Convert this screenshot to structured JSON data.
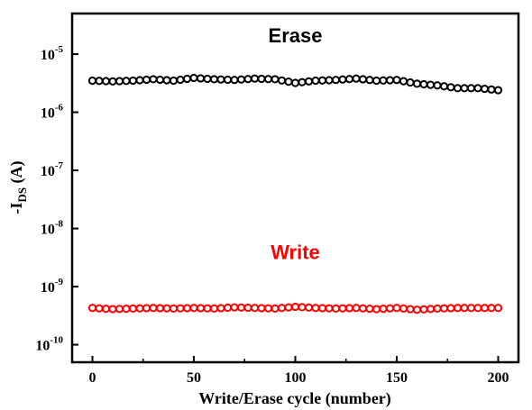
{
  "chart_data": {
    "type": "scatter",
    "xlabel": "Write/Erase cycle (number)",
    "ylabel": {
      "main": "-I",
      "sub": "DS",
      "unit": " (A)"
    },
    "xlim": [
      -10,
      210
    ],
    "ylim": [
      5e-11,
      5e-05
    ],
    "yscale": "log",
    "xticks": [
      0,
      50,
      100,
      150,
      200
    ],
    "yticks": [
      {
        "value": 1e-05,
        "base": "10",
        "exp": "-5"
      },
      {
        "value": 1e-06,
        "base": "10",
        "exp": "-6"
      },
      {
        "value": 1e-07,
        "base": "10",
        "exp": "-7"
      },
      {
        "value": 1e-08,
        "base": "10",
        "exp": "-8"
      },
      {
        "value": 1e-09,
        "base": "10",
        "exp": "-9"
      },
      {
        "value": 1e-10,
        "base": "10",
        "exp": "-10"
      }
    ],
    "grid": false,
    "series": [
      {
        "name": "Erase",
        "color": "#000000",
        "label_position": [
          100,
          1.6e-05
        ],
        "points": [
          [
            0,
            3.5e-06
          ],
          [
            10,
            3.4e-06
          ],
          [
            20,
            3.5e-06
          ],
          [
            30,
            3.7e-06
          ],
          [
            40,
            3.5e-06
          ],
          [
            50,
            3.9e-06
          ],
          [
            60,
            3.7e-06
          ],
          [
            70,
            3.6e-06
          ],
          [
            80,
            3.8e-06
          ],
          [
            90,
            3.7e-06
          ],
          [
            100,
            3.2e-06
          ],
          [
            110,
            3.5e-06
          ],
          [
            120,
            3.6e-06
          ],
          [
            130,
            3.8e-06
          ],
          [
            140,
            3.5e-06
          ],
          [
            150,
            3.6e-06
          ],
          [
            160,
            3.1e-06
          ],
          [
            170,
            2.9e-06
          ],
          [
            180,
            2.6e-06
          ],
          [
            190,
            2.6e-06
          ],
          [
            200,
            2.4e-06
          ]
        ]
      },
      {
        "name": "Write",
        "color": "#ff0000",
        "label_position": [
          100,
          3e-09
        ],
        "points": [
          [
            0,
            4.3e-10
          ],
          [
            10,
            4.1e-10
          ],
          [
            20,
            4.2e-10
          ],
          [
            30,
            4.3e-10
          ],
          [
            40,
            4.2e-10
          ],
          [
            50,
            4.3e-10
          ],
          [
            60,
            4.2e-10
          ],
          [
            70,
            4.4e-10
          ],
          [
            80,
            4.3e-10
          ],
          [
            90,
            4.2e-10
          ],
          [
            100,
            4.5e-10
          ],
          [
            110,
            4.3e-10
          ],
          [
            120,
            4.2e-10
          ],
          [
            130,
            4.3e-10
          ],
          [
            140,
            4.1e-10
          ],
          [
            150,
            4.3e-10
          ],
          [
            160,
            4e-10
          ],
          [
            170,
            4.2e-10
          ],
          [
            180,
            4.3e-10
          ],
          [
            190,
            4.3e-10
          ],
          [
            200,
            4.3e-10
          ]
        ]
      }
    ]
  }
}
